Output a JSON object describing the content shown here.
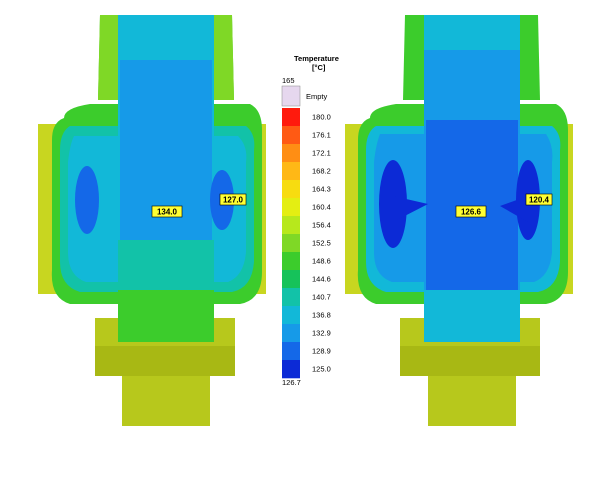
{
  "legend": {
    "title": "Temperature",
    "unit": "[°C]",
    "max_label": "165",
    "empty_label": "Empty",
    "min_label": "126.7",
    "empty_color": "#e6d7ee",
    "levels": [
      {
        "label": "180.0",
        "color": "#ff1a0d"
      },
      {
        "label": "176.1",
        "color": "#ff5a14"
      },
      {
        "label": "172.1",
        "color": "#ff8e14"
      },
      {
        "label": "168.2",
        "color": "#ffb816"
      },
      {
        "label": "164.3",
        "color": "#f7dc10"
      },
      {
        "label": "160.4",
        "color": "#e4ee12"
      },
      {
        "label": "156.4",
        "color": "#b7e81c"
      },
      {
        "label": "152.5",
        "color": "#7fd826"
      },
      {
        "label": "148.6",
        "color": "#3ccc2c"
      },
      {
        "label": "144.6",
        "color": "#16c25a"
      },
      {
        "label": "140.7",
        "color": "#12c2a8"
      },
      {
        "label": "136.8",
        "color": "#12b8d8"
      },
      {
        "label": "132.9",
        "color": "#169ae8"
      },
      {
        "label": "128.9",
        "color": "#1468e8"
      },
      {
        "label": "125.0",
        "color": "#0c2ad6"
      }
    ]
  },
  "colors": {
    "rim": "#7fd826",
    "outer": "#3ccc2c",
    "band_mid": "#12c2a8",
    "band_light": "#12b8d8",
    "core": "#169ae8",
    "core_deep": "#1468e8",
    "hot_spot": "#0c2ad6",
    "base": "#b7c81c",
    "base_dark": "#a8b814",
    "flange": "#c8d620"
  },
  "parts": [
    {
      "name": "left-part",
      "center_label": "134.0",
      "side_label": "127.0"
    },
    {
      "name": "right-part",
      "center_label": "126.6",
      "side_label": "120.4"
    }
  ]
}
